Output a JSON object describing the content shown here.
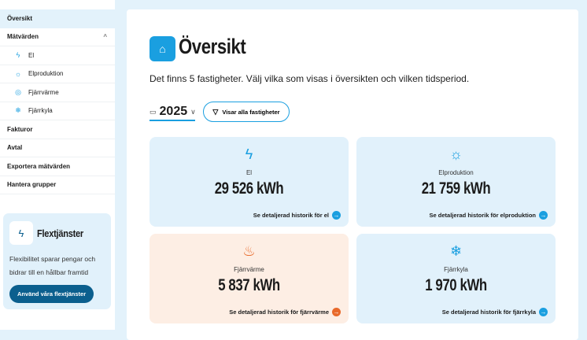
{
  "sidebar": {
    "items": [
      {
        "label": "Översikt"
      },
      {
        "label": "Mätvärden"
      },
      {
        "label": "El"
      },
      {
        "label": "Elproduktion"
      },
      {
        "label": "Fjärrvärme"
      },
      {
        "label": "Fjärrkyla"
      },
      {
        "label": "Fakturor"
      },
      {
        "label": "Avtal"
      },
      {
        "label": "Exportera mätvärden"
      },
      {
        "label": "Hantera grupper"
      }
    ],
    "promo": {
      "title": "Flextjänster",
      "text": "Flexibilitet sparar pengar och bidrar till en hållbar framtid",
      "button": "Använd våra flextjänster"
    }
  },
  "main": {
    "title": "Översikt",
    "description": "Det finns 5 fastigheter. Välj vilka som visas i översikten och vilken tidsperiod.",
    "year": "2025",
    "filter_label": "Visar alla fastigheter",
    "cards": [
      {
        "label": "El",
        "value": "29 526 kWh",
        "link": "Se detaljerad historik för el"
      },
      {
        "label": "Elproduktion",
        "value": "21 759 kWh",
        "link": "Se detaljerad historik för elproduktion"
      },
      {
        "label": "Fjärrvärme",
        "value": "5 837 kWh",
        "link": "Se detaljerad historik för fjärrvärme"
      },
      {
        "label": "Fjärrkyla",
        "value": "1 970 kWh",
        "link": "Se detaljerad historik för fjärrkyla"
      }
    ]
  },
  "colors": {
    "accent": "#1a9fe0",
    "orange": "#e8692a",
    "dark_blue": "#0b5f8e"
  }
}
